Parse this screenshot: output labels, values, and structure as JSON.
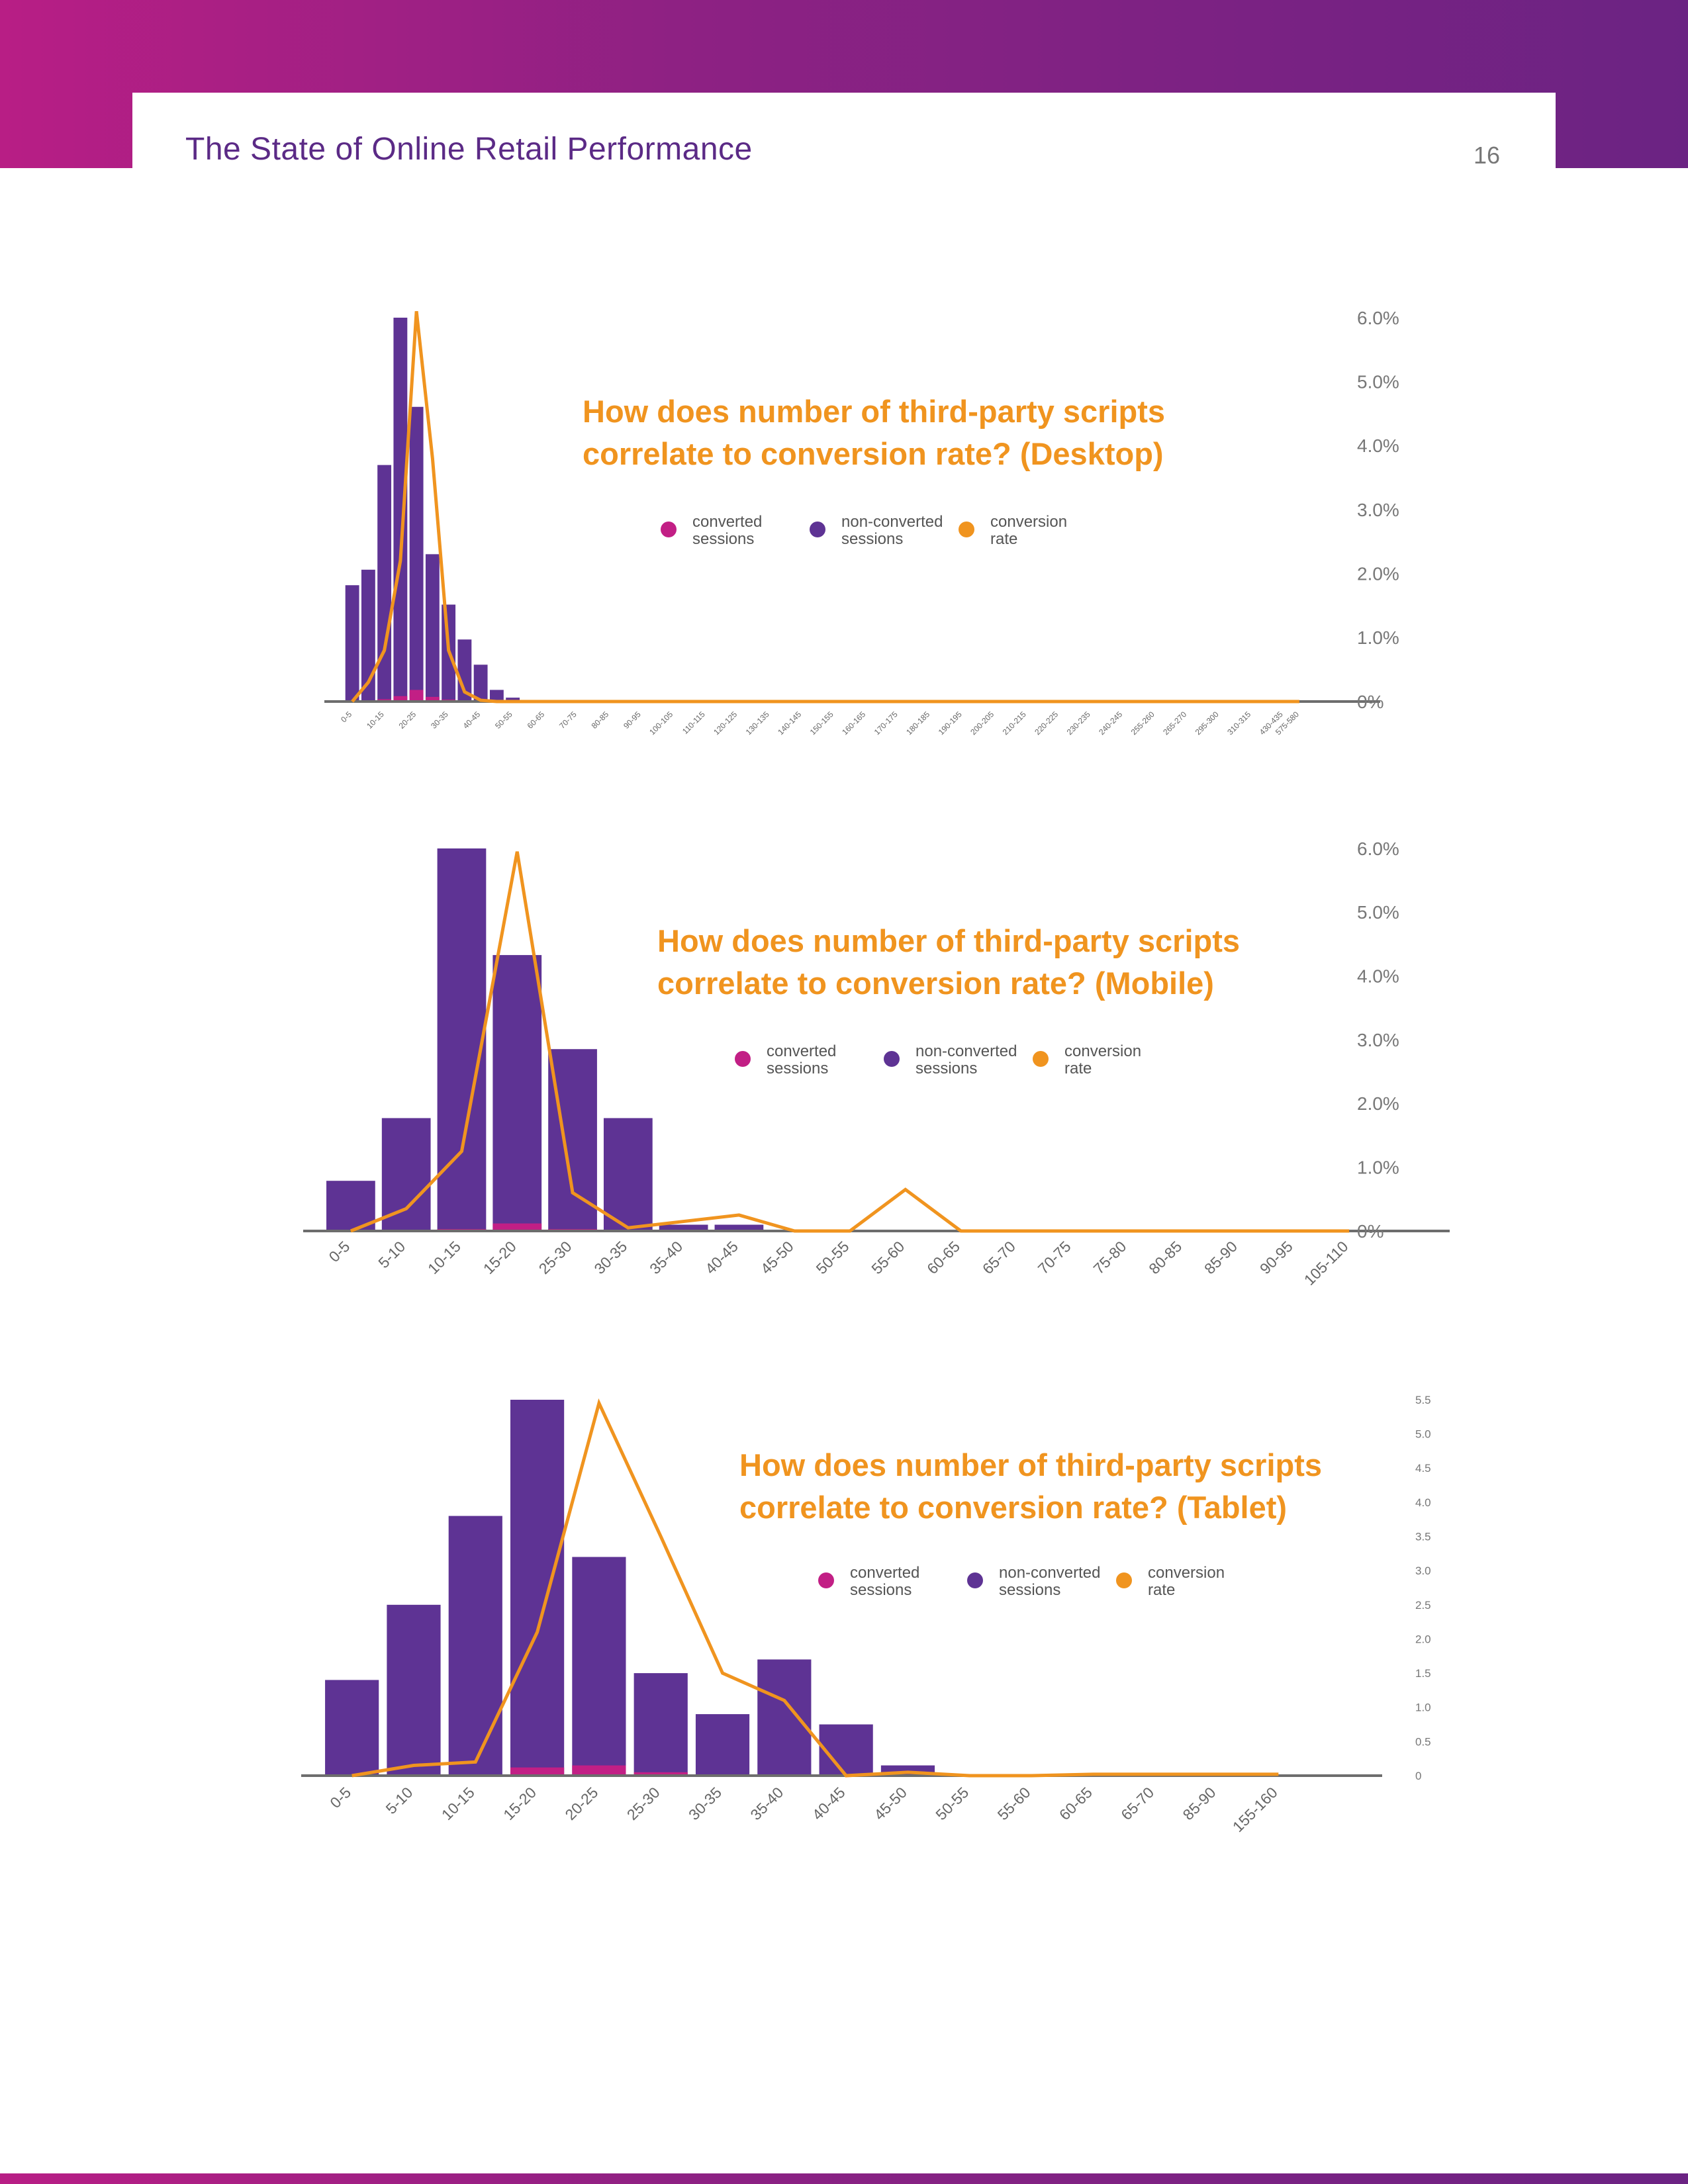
{
  "header": {
    "title": "The State of Online Retail Performance",
    "page_number": "16"
  },
  "colors": {
    "non_converted": "#5e3394",
    "converted": "#c21f85",
    "conversion_rate": "#f0941f",
    "title": "#f0941f"
  },
  "legend": [
    {
      "color": "#c21f85",
      "line1": "converted",
      "line2": "sessions"
    },
    {
      "color": "#5e3394",
      "line1": "non-converted",
      "line2": "sessions"
    },
    {
      "color": "#f0941f",
      "line1": "conversion",
      "line2": "rate"
    }
  ],
  "chart_data": [
    {
      "type": "bar",
      "title_line1": "How does number of third-party scripts",
      "title_line2": "correlate to conversion rate? (Desktop)",
      "categories": [
        "0-5",
        "5-10",
        "10-15",
        "15-20",
        "20-25",
        "25-30",
        "30-35",
        "35-40",
        "40-45",
        "45-50",
        "50-55",
        "55-60",
        "60-65",
        "65-70",
        "70-75",
        "75-80",
        "80-85",
        "85-90",
        "90-95",
        "95-100",
        "100-105",
        "105-110",
        "110-115",
        "115-120",
        "120-125",
        "125-130",
        "130-135",
        "135-140",
        "140-145",
        "145-150",
        "150-155",
        "155-160",
        "160-165",
        "165-170",
        "170-175",
        "175-180",
        "180-185",
        "185-190",
        "190-195",
        "195-200",
        "200-205",
        "205-210",
        "210-215",
        "215-220",
        "220-225",
        "225-230",
        "230-235",
        "235-240",
        "240-245",
        "245-250",
        "255-260",
        "260-265",
        "265-270",
        "270-275",
        "295-300",
        "305-310",
        "310-315",
        "320-325",
        "430-435",
        "575-580"
      ],
      "x_tick_labels": [
        "0-5",
        "10-15",
        "20-25",
        "30-35",
        "40-45",
        "50-55",
        "60-65",
        "70-75",
        "80-85",
        "90-95",
        "100-105",
        "110-115",
        "120-125",
        "130-135",
        "140-145",
        "150-155",
        "160-165",
        "170-175",
        "180-185",
        "190-195",
        "200-205",
        "210-215",
        "220-225",
        "230-235",
        "240-245",
        "255-260",
        "265-270",
        "295-300",
        "310-315",
        "430-435",
        "575-580"
      ],
      "series": [
        {
          "name": "non-converted sessions",
          "values": [
            30,
            34,
            61,
            99,
            76,
            38,
            25,
            16,
            9.5,
            3,
            1,
            0.4,
            0.2,
            0.1,
            0.05,
            0.05,
            0.05,
            0.05,
            0.05,
            0.05,
            0.05,
            0.05,
            0.05,
            0.05,
            0.05,
            0.05,
            0.05,
            0.05,
            0.05,
            0.05,
            0.05,
            0.05,
            0.05,
            0.05,
            0.05,
            0.05,
            0.05,
            0.05,
            0.05,
            0.05,
            0.05,
            0.05,
            0.05,
            0.05,
            0.05,
            0.05,
            0.05,
            0.05,
            0.05,
            0.05,
            0.05,
            0.05,
            0.05,
            0.05,
            0.05,
            0.05,
            0.05,
            0.05,
            0.05,
            0.05
          ]
        },
        {
          "name": "converted sessions",
          "values": [
            0.1,
            0.2,
            0.6,
            1.4,
            3,
            1.2,
            0.5,
            0.2,
            0.1,
            0,
            0,
            0,
            0,
            0,
            0,
            0,
            0,
            0,
            0,
            0,
            0,
            0,
            0,
            0,
            0,
            0,
            0,
            0,
            0,
            0,
            0,
            0,
            0,
            0,
            0,
            0,
            0,
            0,
            0,
            0,
            0,
            0,
            0,
            0,
            0,
            0,
            0,
            0,
            0,
            0,
            0,
            0,
            0,
            0,
            0,
            0,
            0,
            0,
            0,
            0
          ]
        },
        {
          "name": "conversion rate",
          "values": [
            0,
            0.3,
            0.8,
            2.2,
            6.1,
            3.8,
            0.8,
            0.15,
            0.02,
            0,
            0,
            0,
            0,
            0,
            0,
            0,
            0,
            0,
            0,
            0,
            0,
            0,
            0,
            0,
            0,
            0,
            0,
            0,
            0,
            0,
            0,
            0,
            0,
            0,
            0,
            0,
            0,
            0,
            0,
            0,
            0,
            0,
            0,
            0,
            0,
            0,
            0,
            0,
            0,
            0,
            0,
            0,
            0,
            0,
            0,
            0,
            0,
            0,
            0,
            0
          ]
        }
      ],
      "y_right": {
        "ticks": [
          "0%",
          "1.0%",
          "2.0%",
          "3.0%",
          "4.0%",
          "5.0%",
          "6.0%"
        ],
        "range": [
          0,
          6
        ]
      }
    },
    {
      "type": "bar",
      "title_line1": "How does number of third-party scripts",
      "title_line2": "correlate to conversion rate? (Mobile)",
      "categories": [
        "0-5",
        "5-10",
        "10-15",
        "15-20",
        "25-30",
        "30-35",
        "35-40",
        "40-45",
        "45-50",
        "50-55",
        "55-60",
        "60-65",
        "65-70",
        "70-75",
        "75-80",
        "80-85",
        "85-90",
        "90-95",
        "105-110"
      ],
      "x_tick_labels": [
        "0-5",
        "5-10",
        "10-15",
        "15-20",
        "25-30",
        "30-35",
        "35-40",
        "40-45",
        "45-50",
        "50-55",
        "55-60",
        "60-65",
        "65-70",
        "70-75",
        "75-80",
        "80-85",
        "85-90",
        "90-95",
        "105-110"
      ],
      "series": [
        {
          "name": "non-converted sessions",
          "values": [
            8,
            18,
            61,
            44,
            29,
            18,
            1,
            1,
            0.1,
            0,
            0,
            0,
            0,
            0,
            0,
            0,
            0,
            0,
            0
          ]
        },
        {
          "name": "converted sessions",
          "values": [
            0,
            0,
            0.3,
            1.2,
            0.3,
            0.1,
            0,
            0,
            0,
            0,
            0,
            0,
            0,
            0,
            0,
            0,
            0,
            0,
            0
          ]
        },
        {
          "name": "conversion rate",
          "values": [
            0,
            0.35,
            1.25,
            5.95,
            0.6,
            0.05,
            0.15,
            0.25,
            0,
            0,
            0.65,
            0,
            0,
            0,
            0,
            0,
            0,
            0,
            0
          ]
        }
      ],
      "y_right": {
        "ticks": [
          "0%",
          "1.0%",
          "2.0%",
          "3.0%",
          "4.0%",
          "5.0%",
          "6.0%"
        ],
        "range": [
          0,
          6
        ]
      }
    },
    {
      "type": "bar",
      "title_line1": "How does number of third-party scripts",
      "title_line2": "correlate to conversion rate? (Tablet)",
      "categories": [
        "0-5",
        "5-10",
        "10-15",
        "15-20",
        "20-25",
        "25-30",
        "30-35",
        "35-40",
        "40-45",
        "45-50",
        "50-55",
        "55-60",
        "60-65",
        "65-70",
        "85-90",
        "155-160"
      ],
      "x_tick_labels": [
        "0-5",
        "5-10",
        "10-15",
        "15-20",
        "20-25",
        "25-30",
        "30-35",
        "35-40",
        "40-45",
        "45-50",
        "50-55",
        "55-60",
        "60-65",
        "65-70",
        "85-90",
        "155-160"
      ],
      "series": [
        {
          "name": "non-converted sessions",
          "values": [
            14,
            25,
            38,
            55,
            32,
            15,
            9,
            17,
            7.5,
            1.5,
            0,
            0,
            0,
            0,
            0,
            0
          ]
        },
        {
          "name": "converted sessions",
          "values": [
            0,
            0,
            0,
            1.2,
            1.5,
            0.5,
            0,
            0,
            0,
            0,
            0,
            0,
            0,
            0,
            0,
            0
          ]
        },
        {
          "name": "conversion rate",
          "values": [
            0,
            0.15,
            0.2,
            2.1,
            5.45,
            3.5,
            1.5,
            1.1,
            0,
            0.05,
            0,
            0,
            0.02,
            0.02,
            0.02,
            0.02
          ]
        }
      ],
      "y_right": {
        "ticks": [
          "0",
          "0.5",
          "1.0",
          "1.5",
          "2.0",
          "2.5",
          "3.0",
          "3.5",
          "4.0",
          "4.5",
          "5.0",
          "5.5"
        ],
        "range": [
          0,
          5.5
        ]
      }
    }
  ]
}
